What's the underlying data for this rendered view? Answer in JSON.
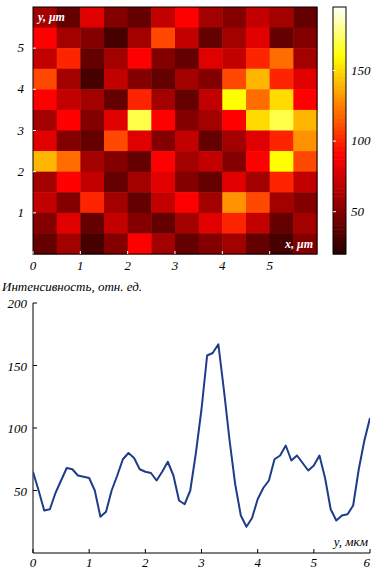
{
  "chart_data": [
    {
      "type": "heatmap",
      "x_label": "x, μm",
      "y_label": "y, μm",
      "xlim": [
        0,
        6
      ],
      "ylim": [
        0,
        6
      ],
      "xticks": [
        0,
        1,
        2,
        3,
        4,
        5
      ],
      "yticks": [
        1,
        2,
        3,
        4,
        5
      ],
      "cells": [
        [
          60,
          40,
          80,
          50,
          40,
          70,
          90,
          60,
          50,
          70,
          60,
          40
        ],
        [
          90,
          60,
          50,
          30,
          60,
          110,
          70,
          40,
          60,
          80,
          40,
          50
        ],
        [
          70,
          100,
          40,
          60,
          90,
          50,
          40,
          80,
          70,
          100,
          120,
          60
        ],
        [
          110,
          60,
          30,
          70,
          50,
          40,
          60,
          50,
          110,
          140,
          100,
          80
        ],
        [
          90,
          70,
          60,
          40,
          100,
          60,
          40,
          70,
          160,
          120,
          150,
          90
        ],
        [
          60,
          90,
          50,
          80,
          170,
          90,
          50,
          60,
          90,
          150,
          170,
          140
        ],
        [
          80,
          50,
          40,
          110,
          80,
          50,
          70,
          40,
          60,
          80,
          100,
          130
        ],
        [
          140,
          120,
          60,
          50,
          40,
          90,
          60,
          70,
          50,
          90,
          160,
          110
        ],
        [
          60,
          90,
          70,
          40,
          60,
          80,
          50,
          40,
          80,
          60,
          100,
          70
        ],
        [
          70,
          50,
          100,
          60,
          40,
          70,
          90,
          60,
          130,
          110,
          60,
          50
        ],
        [
          50,
          80,
          40,
          70,
          50,
          40,
          60,
          80,
          100,
          70,
          40,
          60
        ],
        [
          40,
          60,
          30,
          50,
          90,
          60,
          40,
          50,
          60,
          40,
          30,
          50
        ]
      ],
      "colorbar_range": [
        20,
        195
      ],
      "colorbar_ticks": [
        50,
        100,
        150
      ]
    },
    {
      "type": "line",
      "y_label": "Интенсивность, отн. ед.",
      "x_label": "y, мкм",
      "color": "#1f3c88",
      "xlim": [
        0,
        6
      ],
      "ylim": [
        0,
        200
      ],
      "xticks": [
        0,
        1,
        2,
        3,
        4,
        5,
        6
      ],
      "yticks": [
        50,
        100,
        150,
        200
      ],
      "x": [
        0,
        0.1,
        0.2,
        0.3,
        0.4,
        0.5,
        0.6,
        0.7,
        0.8,
        0.9,
        1,
        1.1,
        1.2,
        1.3,
        1.4,
        1.5,
        1.6,
        1.7,
        1.8,
        1.9,
        2,
        2.1,
        2.2,
        2.3,
        2.4,
        2.5,
        2.6,
        2.7,
        2.8,
        2.9,
        3,
        3.1,
        3.2,
        3.3,
        3.4,
        3.5,
        3.6,
        3.7,
        3.8,
        3.9,
        4,
        4.1,
        4.2,
        4.3,
        4.4,
        4.5,
        4.6,
        4.7,
        4.8,
        4.9,
        5,
        5.1,
        5.2,
        5.3,
        5.4,
        5.5,
        5.6,
        5.7,
        5.8,
        5.9,
        6
      ],
      "values": [
        65,
        50,
        34,
        35,
        48,
        58,
        68,
        67,
        62,
        61,
        60,
        50,
        29,
        33,
        50,
        62,
        75,
        80,
        76,
        67,
        65,
        64,
        58,
        65,
        73,
        62,
        42,
        39,
        50,
        80,
        115,
        158,
        160,
        167,
        130,
        90,
        55,
        30,
        21,
        28,
        43,
        52,
        58,
        75,
        78,
        86,
        74,
        78,
        72,
        66,
        70,
        78,
        60,
        35,
        26,
        30,
        31,
        38,
        67,
        90,
        108
      ]
    }
  ]
}
